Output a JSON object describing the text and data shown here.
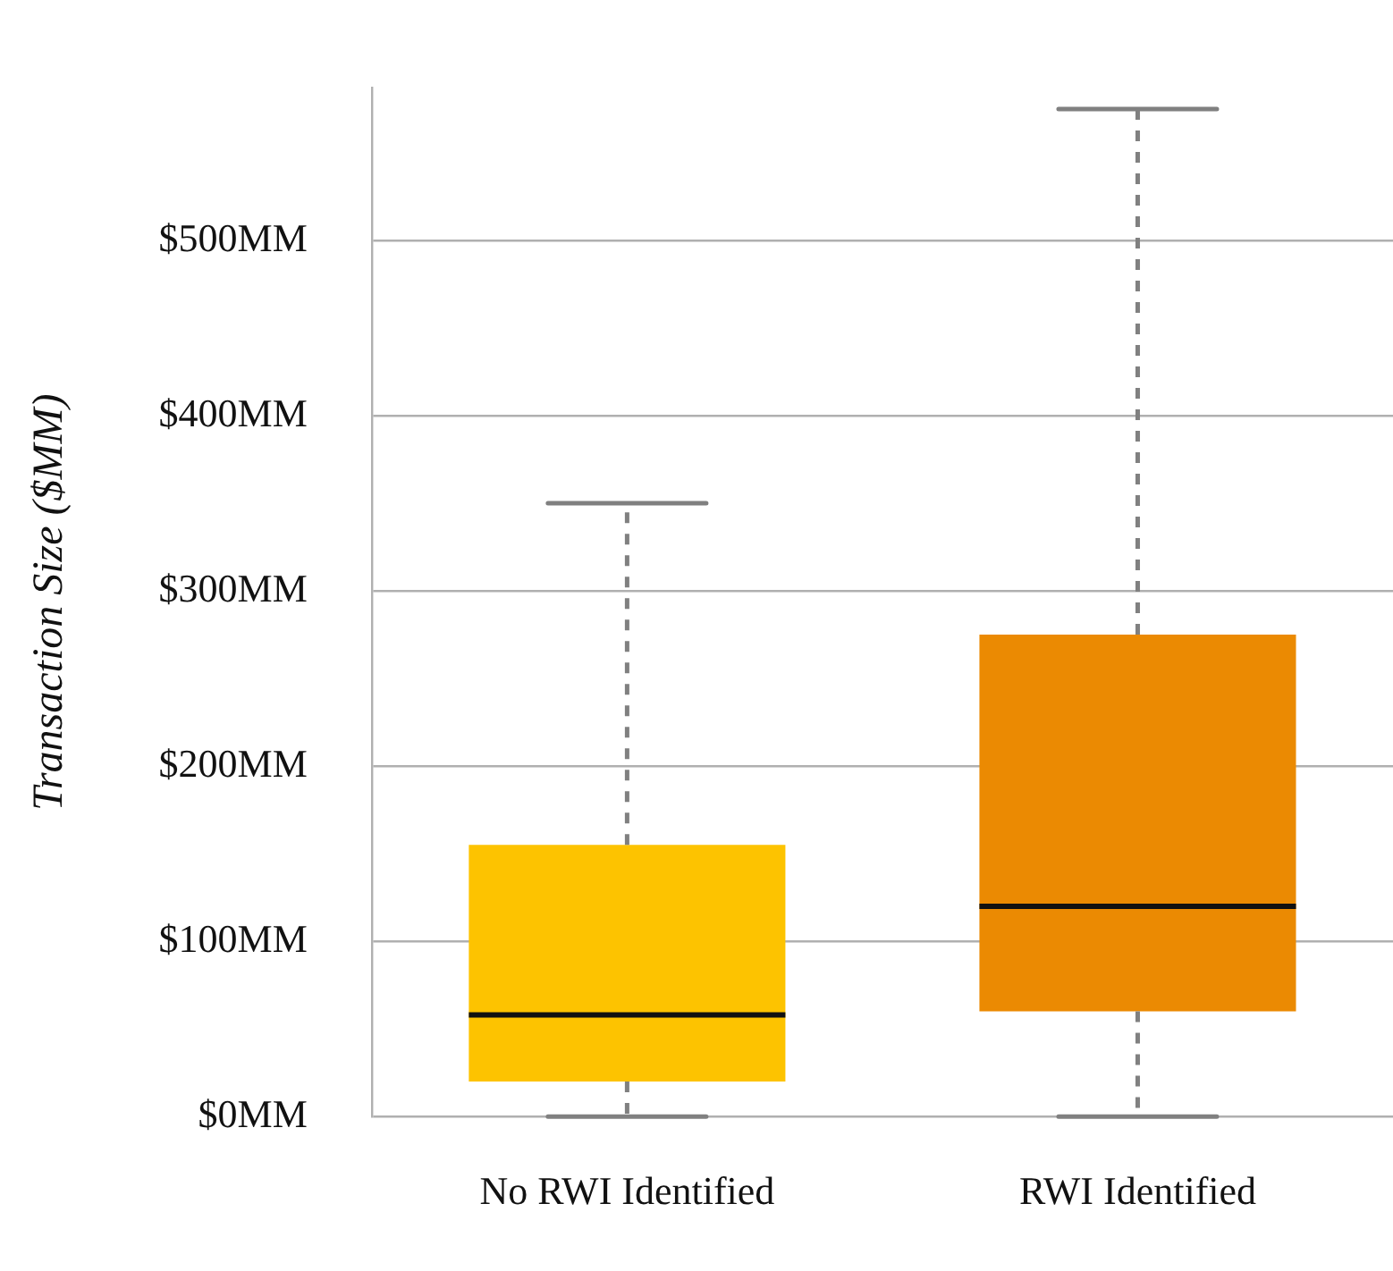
{
  "chart_data": {
    "type": "box",
    "ylabel": "Transaction Size ($MM)",
    "categories": [
      "No RWI Identified",
      "RWI Identified"
    ],
    "colors": [
      "#fdc300",
      "#eb8a02"
    ],
    "boxes": [
      {
        "low": 0,
        "q1": 20,
        "median": 58,
        "q3": 155,
        "high": 350
      },
      {
        "low": 0,
        "q1": 60,
        "median": 120,
        "q3": 275,
        "high": 575
      }
    ],
    "ylim": [
      0,
      587
    ],
    "yticks": [
      {
        "value": 0,
        "label": "$0MM"
      },
      {
        "value": 100,
        "label": "$100MM"
      },
      {
        "value": 200,
        "label": "$200MM"
      },
      {
        "value": 300,
        "label": "$300MM"
      },
      {
        "value": 400,
        "label": "$400MM"
      },
      {
        "value": 500,
        "label": "$500MM"
      }
    ],
    "grid": "y",
    "legend": false
  }
}
